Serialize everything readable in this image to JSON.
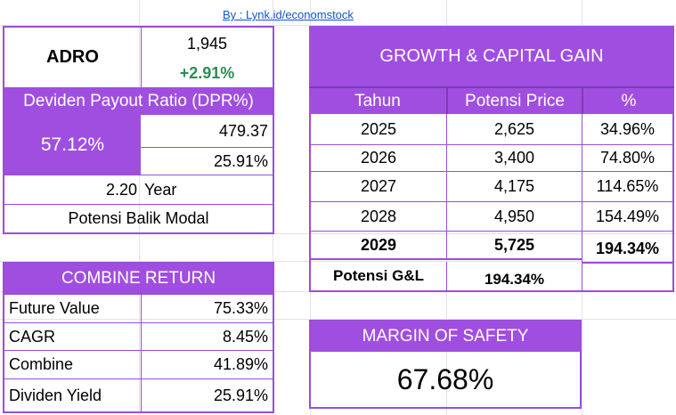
{
  "link": "By : Lynk.id/economstock",
  "ticker": {
    "code": "ADRO",
    "price": "1,945",
    "change": "+2.91%",
    "change_color": "#2e8b57"
  },
  "dpr": {
    "title": "Deviden Payout Ratio (DPR%)",
    "ratio": "57.12%",
    "value1": "479.37",
    "value2": "25.91%",
    "years": "2.20",
    "years_label": "Year",
    "footer": "Potensi Balik Modal"
  },
  "growth": {
    "title": "GROWTH & CAPITAL GAIN",
    "headers": [
      "Tahun",
      "Potensi Price",
      "%"
    ],
    "rows": [
      {
        "year": "2025",
        "price": "2,625",
        "pct": "34.96%"
      },
      {
        "year": "2026",
        "price": "3,400",
        "pct": "74.80%"
      },
      {
        "year": "2027",
        "price": "4,175",
        "pct": "114.65%"
      },
      {
        "year": "2028",
        "price": "4,950",
        "pct": "154.49%"
      },
      {
        "year": "2029",
        "price": "5,725",
        "pct": "194.34%"
      }
    ],
    "summary_label": "Potensi G&L",
    "summary_value": "194.34%"
  },
  "combine": {
    "title": "COMBINE RETURN",
    "rows": [
      {
        "label": "Future Value",
        "value": "75.33%"
      },
      {
        "label": "CAGR",
        "value": "8.45%"
      },
      {
        "label": "Combine",
        "value": "41.89%"
      },
      {
        "label": "Dividen Yield",
        "value": "25.91%"
      }
    ]
  },
  "mos": {
    "title": "MARGIN OF SAFETY",
    "value": "67.68%"
  },
  "colors": {
    "purple": "#a04ee0",
    "border": "#9b4ddb"
  }
}
